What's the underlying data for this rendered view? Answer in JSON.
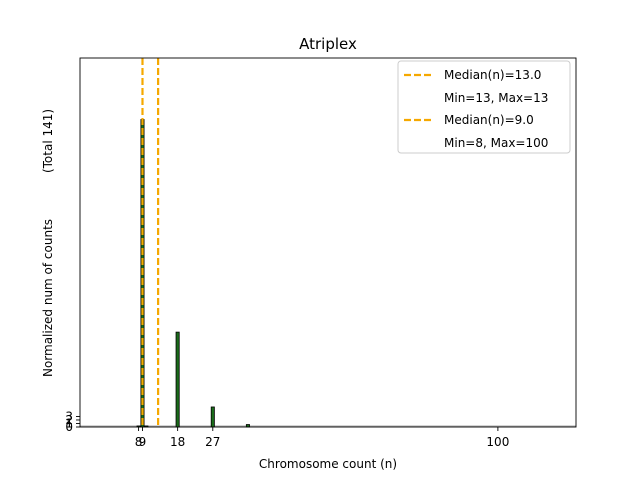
{
  "chart_data": {
    "type": "bar",
    "title": "Atriplex",
    "xlabel": "Chromosome count (n)",
    "ylabel": "Normalized num of counts",
    "ylabel_total": "(Total 141)",
    "xlim": [
      -7,
      120
    ],
    "ylim": [
      0,
      1.05
    ],
    "x_ticks": [
      8,
      9,
      18,
      27,
      100
    ],
    "y_ticks": [
      0,
      0.01,
      0.02,
      0.03
    ],
    "y_tick_labels": [
      "0",
      "1",
      "2",
      "3"
    ],
    "bar_color": "#1a6b1a",
    "series": [
      {
        "color": "#1a6b1a",
        "bars": [
          {
            "x": 9,
            "value": 0.875
          },
          {
            "x": 18,
            "value": 0.27
          },
          {
            "x": 27,
            "value": 0.057
          },
          {
            "x": 36,
            "value": 0.007
          },
          {
            "x": 8,
            "value": 0.003
          },
          {
            "x": 10,
            "value": 0.003
          }
        ]
      }
    ],
    "median_lines": [
      {
        "x": 13,
        "color": "#f5a800"
      },
      {
        "x": 9,
        "color": "#f5a800"
      }
    ],
    "legend": {
      "position": "top-right",
      "entries": [
        {
          "label": "Median(n)=13.0",
          "kind": "line",
          "color": "#f5a800"
        },
        {
          "label": "Min=13, Max=13",
          "kind": "text"
        },
        {
          "label": "Median(n)=9.0",
          "kind": "line",
          "color": "#f5a800"
        },
        {
          "label": "Min=8, Max=100",
          "kind": "text"
        }
      ]
    }
  }
}
